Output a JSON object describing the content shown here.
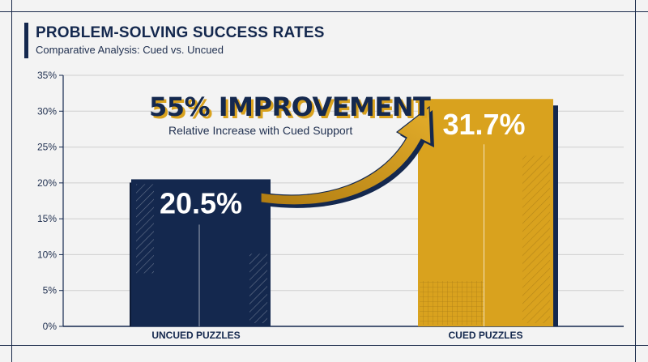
{
  "title": "PROBLEM-SOLVING SUCCESS RATES",
  "subtitle": "Comparative Analysis: Cued vs. Uncued",
  "callout": {
    "headline": "55% IMPROVEMENT",
    "subtext": "Relative Increase with Cued Support"
  },
  "colors": {
    "navy": "#14284e",
    "gold": "#d9a21e",
    "background": "#f3f3f3",
    "grid": "#cfcfcf"
  },
  "chart_data": {
    "type": "bar",
    "categories": [
      "UNCUED PUZZLES",
      "CUED PUZZLES"
    ],
    "values": [
      20.5,
      31.7
    ],
    "value_labels": [
      "20.5%",
      "31.7%"
    ],
    "yticks": [
      "0%",
      "5%",
      "10%",
      "15%",
      "20%",
      "25%",
      "30%",
      "35%"
    ],
    "ylim": [
      0,
      35
    ],
    "grid": true
  }
}
